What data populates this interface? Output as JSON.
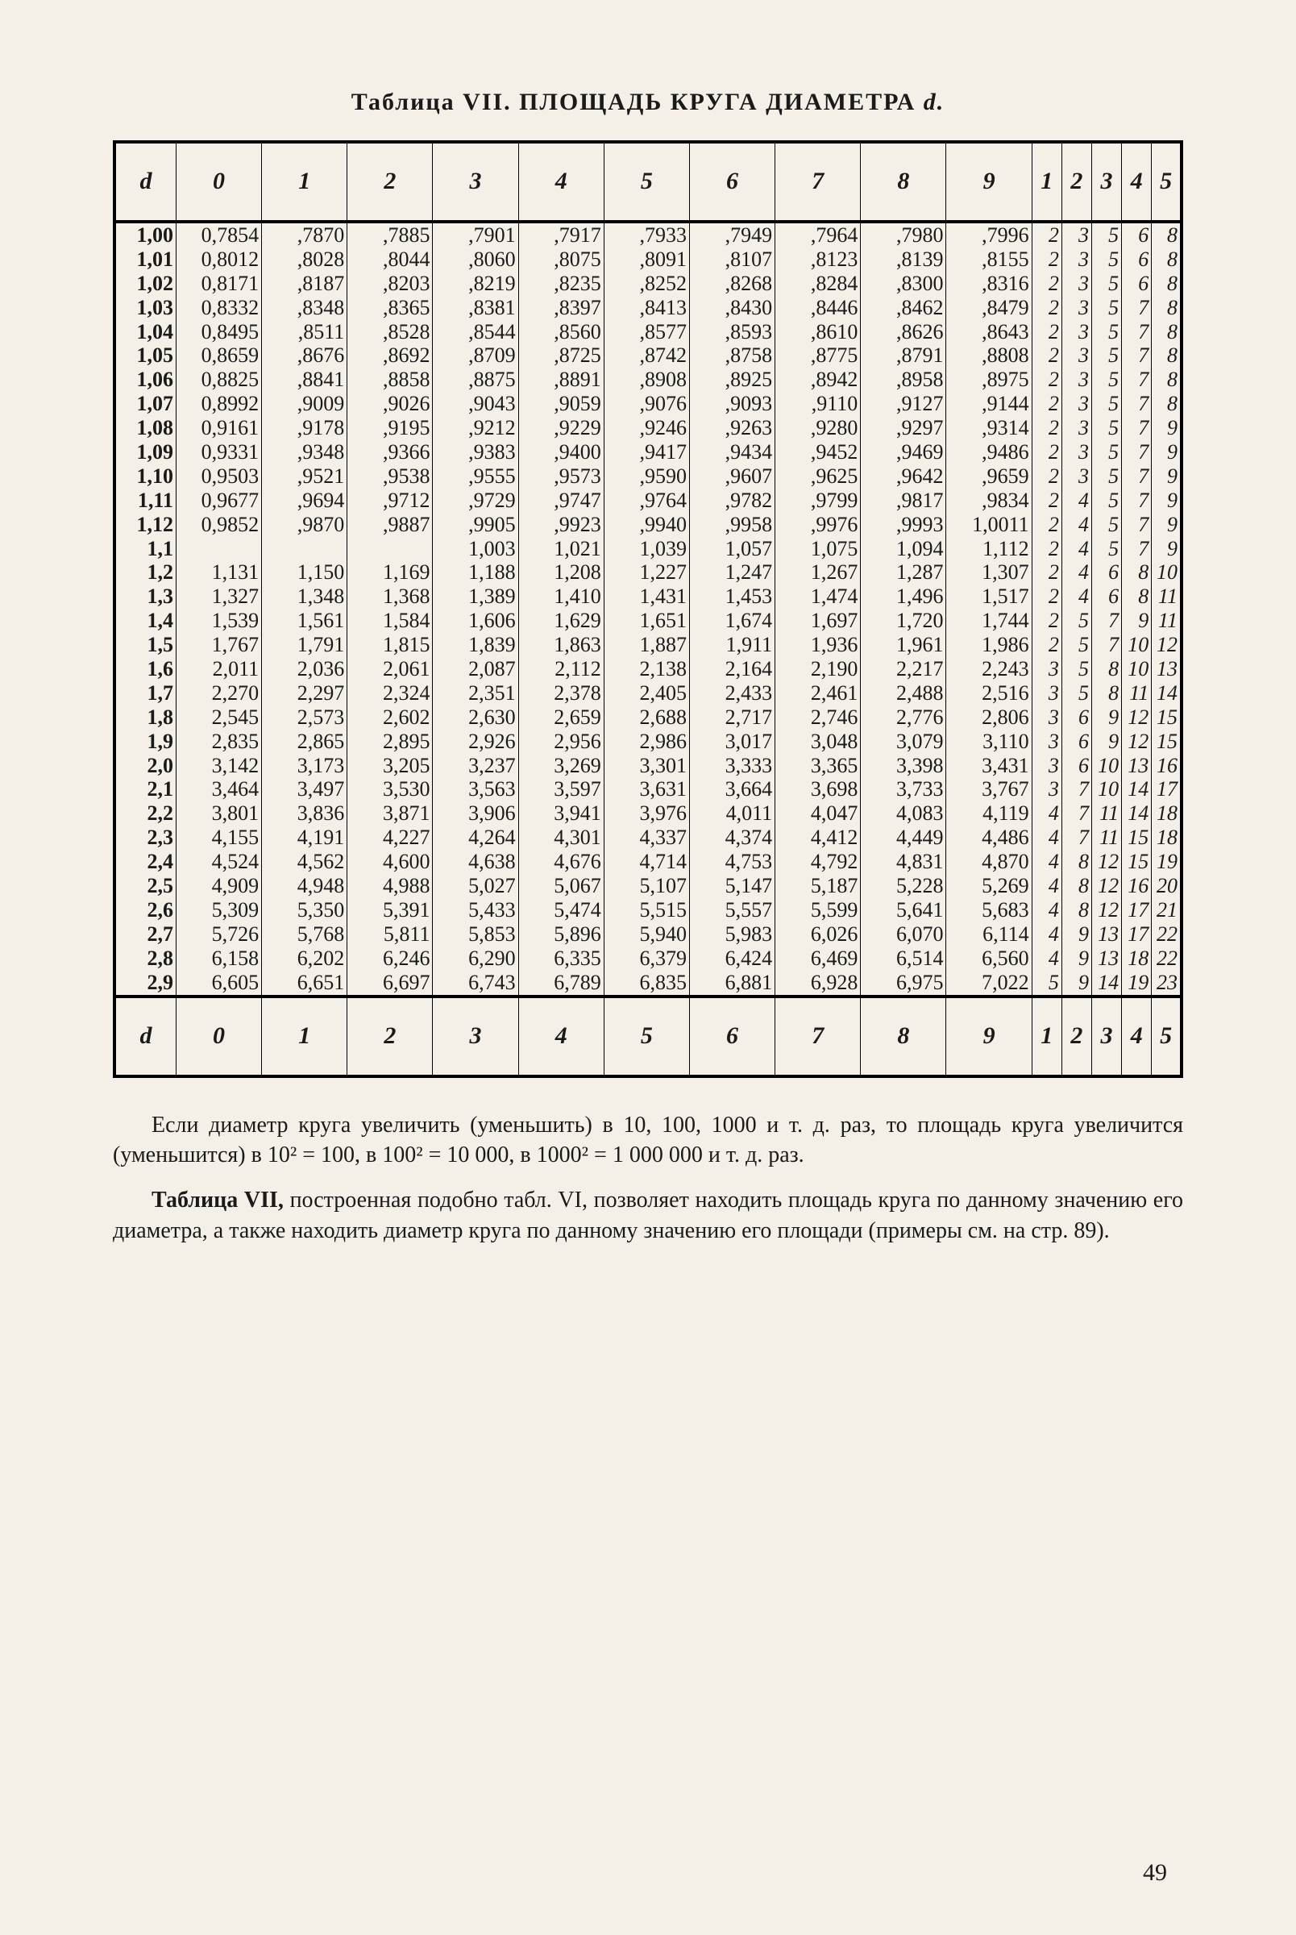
{
  "title_prefix": "Таблица VII.",
  "title_main": "ПЛОЩАДЬ КРУГА ДИАМЕТРА",
  "title_var": "d.",
  "headers": [
    "d",
    "0",
    "1",
    "2",
    "3",
    "4",
    "5",
    "6",
    "7",
    "8",
    "9",
    "1",
    "2",
    "3",
    "4",
    "5"
  ],
  "col_widths": {
    "d": 72,
    "v": 100,
    "s": 35
  },
  "font": {
    "table_size": 26,
    "header_size": 30,
    "body_size": 28
  },
  "colors": {
    "bg": "#f4f0e8",
    "fg": "#1a1a1a",
    "rule": "#000000"
  },
  "blocks": [
    [
      [
        "1,00",
        "0,7854",
        ",7870",
        ",7885",
        ",7901",
        ",7917",
        ",7933",
        ",7949",
        ",7964",
        ",7980",
        ",7996",
        "2",
        "3",
        "5",
        "6",
        "8"
      ],
      [
        "1,01",
        "0,8012",
        ",8028",
        ",8044",
        ",8060",
        ",8075",
        ",8091",
        ",8107",
        ",8123",
        ",8139",
        ",8155",
        "2",
        "3",
        "5",
        "6",
        "8"
      ],
      [
        "1,02",
        "0,8171",
        ",8187",
        ",8203",
        ",8219",
        ",8235",
        ",8252",
        ",8268",
        ",8284",
        ",8300",
        ",8316",
        "2",
        "3",
        "5",
        "6",
        "8"
      ],
      [
        "1,03",
        "0,8332",
        ",8348",
        ",8365",
        ",8381",
        ",8397",
        ",8413",
        ",8430",
        ",8446",
        ",8462",
        ",8479",
        "2",
        "3",
        "5",
        "7",
        "8"
      ],
      [
        "1,04",
        "0,8495",
        ",8511",
        ",8528",
        ",8544",
        ",8560",
        ",8577",
        ",8593",
        ",8610",
        ",8626",
        ",8643",
        "2",
        "3",
        "5",
        "7",
        "8"
      ]
    ],
    [
      [
        "1,05",
        "0,8659",
        ",8676",
        ",8692",
        ",8709",
        ",8725",
        ",8742",
        ",8758",
        ",8775",
        ",8791",
        ",8808",
        "2",
        "3",
        "5",
        "7",
        "8"
      ],
      [
        "1,06",
        "0,8825",
        ",8841",
        ",8858",
        ",8875",
        ",8891",
        ",8908",
        ",8925",
        ",8942",
        ",8958",
        ",8975",
        "2",
        "3",
        "5",
        "7",
        "8"
      ],
      [
        "1,07",
        "0,8992",
        ",9009",
        ",9026",
        ",9043",
        ",9059",
        ",9076",
        ",9093",
        ",9110",
        ",9127",
        ",9144",
        "2",
        "3",
        "5",
        "7",
        "8"
      ],
      [
        "1,08",
        "0,9161",
        ",9178",
        ",9195",
        ",9212",
        ",9229",
        ",9246",
        ",9263",
        ",9280",
        ",9297",
        ",9314",
        "2",
        "3",
        "5",
        "7",
        "9"
      ],
      [
        "1,09",
        "0,9331",
        ",9348",
        ",9366",
        ",9383",
        ",9400",
        ",9417",
        ",9434",
        ",9452",
        ",9469",
        ",9486",
        "2",
        "3",
        "5",
        "7",
        "9"
      ]
    ],
    [
      [
        "1,10",
        "0,9503",
        ",9521",
        ",9538",
        ",9555",
        ",9573",
        ",9590",
        ",9607",
        ",9625",
        ",9642",
        ",9659",
        "2",
        "3",
        "5",
        "7",
        "9"
      ],
      [
        "1,11",
        "0,9677",
        ",9694",
        ",9712",
        ",9729",
        ",9747",
        ",9764",
        ",9782",
        ",9799",
        ",9817",
        ",9834",
        "2",
        "4",
        "5",
        "7",
        "9"
      ],
      [
        "1,12",
        "0,9852",
        ",9870",
        ",9887",
        ",9905",
        ",9923",
        ",9940",
        ",9958",
        ",9976",
        ",9993",
        "1,0011",
        "2",
        "4",
        "5",
        "7",
        "9"
      ]
    ],
    [
      [
        "1,1",
        "",
        "",
        "",
        "1,003",
        "1,021",
        "1,039",
        "1,057",
        "1,075",
        "1,094",
        "1,112",
        "2",
        "4",
        "5",
        "7",
        "9"
      ],
      [
        "1,2",
        "1,131",
        "1,150",
        "1,169",
        "1,188",
        "1,208",
        "1,227",
        "1,247",
        "1,267",
        "1,287",
        "1,307",
        "2",
        "4",
        "6",
        "8",
        "10"
      ],
      [
        "1,3",
        "1,327",
        "1,348",
        "1,368",
        "1,389",
        "1,410",
        "1,431",
        "1,453",
        "1,474",
        "1,496",
        "1,517",
        "2",
        "4",
        "6",
        "8",
        "11"
      ],
      [
        "1,4",
        "1,539",
        "1,561",
        "1,584",
        "1,606",
        "1,629",
        "1,651",
        "1,674",
        "1,697",
        "1,720",
        "1,744",
        "2",
        "5",
        "7",
        "9",
        "11"
      ]
    ],
    [
      [
        "1,5",
        "1,767",
        "1,791",
        "1,815",
        "1,839",
        "1,863",
        "1,887",
        "1,911",
        "1,936",
        "1,961",
        "1,986",
        "2",
        "5",
        "7",
        "10",
        "12"
      ],
      [
        "1,6",
        "2,011",
        "2,036",
        "2,061",
        "2,087",
        "2,112",
        "2,138",
        "2,164",
        "2,190",
        "2,217",
        "2,243",
        "3",
        "5",
        "8",
        "10",
        "13"
      ],
      [
        "1,7",
        "2,270",
        "2,297",
        "2,324",
        "2,351",
        "2,378",
        "2,405",
        "2,433",
        "2,461",
        "2,488",
        "2,516",
        "3",
        "5",
        "8",
        "11",
        "14"
      ],
      [
        "1,8",
        "2,545",
        "2,573",
        "2,602",
        "2,630",
        "2,659",
        "2,688",
        "2,717",
        "2,746",
        "2,776",
        "2,806",
        "3",
        "6",
        "9",
        "12",
        "15"
      ],
      [
        "1,9",
        "2,835",
        "2,865",
        "2,895",
        "2,926",
        "2,956",
        "2,986",
        "3,017",
        "3,048",
        "3,079",
        "3,110",
        "3",
        "6",
        "9",
        "12",
        "15"
      ]
    ],
    [
      [
        "2,0",
        "3,142",
        "3,173",
        "3,205",
        "3,237",
        "3,269",
        "3,301",
        "3,333",
        "3,365",
        "3,398",
        "3,431",
        "3",
        "6",
        "10",
        "13",
        "16"
      ],
      [
        "2,1",
        "3,464",
        "3,497",
        "3,530",
        "3,563",
        "3,597",
        "3,631",
        "3,664",
        "3,698",
        "3,733",
        "3,767",
        "3",
        "7",
        "10",
        "14",
        "17"
      ],
      [
        "2,2",
        "3,801",
        "3,836",
        "3,871",
        "3,906",
        "3,941",
        "3,976",
        "4,011",
        "4,047",
        "4,083",
        "4,119",
        "4",
        "7",
        "11",
        "14",
        "18"
      ],
      [
        "2,3",
        "4,155",
        "4,191",
        "4,227",
        "4,264",
        "4,301",
        "4,337",
        "4,374",
        "4,412",
        "4,449",
        "4,486",
        "4",
        "7",
        "11",
        "15",
        "18"
      ],
      [
        "2,4",
        "4,524",
        "4,562",
        "4,600",
        "4,638",
        "4,676",
        "4,714",
        "4,753",
        "4,792",
        "4,831",
        "4,870",
        "4",
        "8",
        "12",
        "15",
        "19"
      ]
    ],
    [
      [
        "2,5",
        "4,909",
        "4,948",
        "4,988",
        "5,027",
        "5,067",
        "5,107",
        "5,147",
        "5,187",
        "5,228",
        "5,269",
        "4",
        "8",
        "12",
        "16",
        "20"
      ],
      [
        "2,6",
        "5,309",
        "5,350",
        "5,391",
        "5,433",
        "5,474",
        "5,515",
        "5,557",
        "5,599",
        "5,641",
        "5,683",
        "4",
        "8",
        "12",
        "17",
        "21"
      ],
      [
        "2,7",
        "5,726",
        "5,768",
        "5,811",
        "5,853",
        "5,896",
        "5,940",
        "5,983",
        "6,026",
        "6,070",
        "6,114",
        "4",
        "9",
        "13",
        "17",
        "22"
      ],
      [
        "2,8",
        "6,158",
        "6,202",
        "6,246",
        "6,290",
        "6,335",
        "6,379",
        "6,424",
        "6,469",
        "6,514",
        "6,560",
        "4",
        "9",
        "13",
        "18",
        "22"
      ],
      [
        "2,9",
        "6,605",
        "6,651",
        "6,697",
        "6,743",
        "6,789",
        "6,835",
        "6,881",
        "6,928",
        "6,975",
        "7,022",
        "5",
        "9",
        "14",
        "19",
        "23"
      ]
    ]
  ],
  "note1": "Если диаметр круга увеличить (уменьшить) в 10, 100, 1000 и т. д. раз, то площадь круга увеличится (уменьшится) в 10² = 100, в 100² = 10 000, в 1000² = 1 000 000 и т. д. раз.",
  "note2_lead": "Таблица VII,",
  "note2_rest": " построенная подобно табл. VI, позволяет находить площадь круга по данному значению его диаметра, а также находить диаметр круга по данному значению его площади (примеры см. на стр. 89).",
  "page_number": "49"
}
